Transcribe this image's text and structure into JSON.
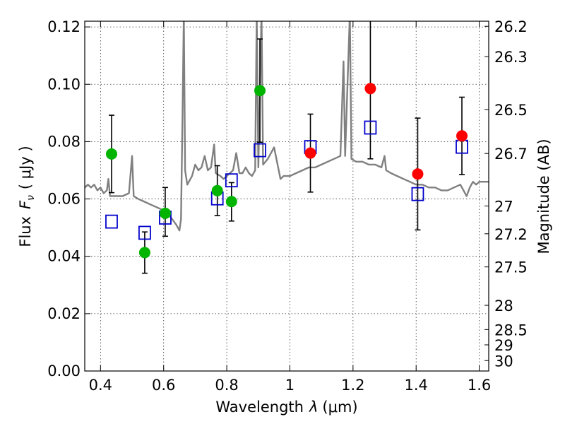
{
  "chart_data": {
    "type": "scatter",
    "xlabel_text": "Wavelength",
    "xlabel_symbol": "λ",
    "xlabel_unit": "(μm)",
    "ylabel_text": "Flux",
    "ylabel_symbol": "F",
    "ylabel_subscript": "ν",
    "ylabel_unit": "( μJy )",
    "ylabel_right": "Magnitude (AB)",
    "xlim": [
      0.35,
      1.63
    ],
    "ylim": [
      0.0,
      0.122
    ],
    "xticks": [
      {
        "value": 0.4,
        "label": "0.4"
      },
      {
        "value": 0.6,
        "label": "0.6"
      },
      {
        "value": 0.8,
        "label": "0.8"
      },
      {
        "value": 1.0,
        "label": "1"
      },
      {
        "value": 1.2,
        "label": "1.2"
      },
      {
        "value": 1.4,
        "label": "1.4"
      },
      {
        "value": 1.6,
        "label": "1.6"
      }
    ],
    "yticks": [
      {
        "value": 0.0,
        "label": "0.00"
      },
      {
        "value": 0.02,
        "label": "0.02"
      },
      {
        "value": 0.04,
        "label": "0.04"
      },
      {
        "value": 0.06,
        "label": "0.06"
      },
      {
        "value": 0.08,
        "label": "0.08"
      },
      {
        "value": 0.1,
        "label": "0.10"
      },
      {
        "value": 0.12,
        "label": "0.12"
      }
    ],
    "right_ticks": [
      {
        "mag": 26.2,
        "label": "26.2"
      },
      {
        "mag": 26.3,
        "label": "26.3"
      },
      {
        "mag": 26.5,
        "label": "26.5"
      },
      {
        "mag": 26.7,
        "label": "26.7"
      },
      {
        "mag": 27.0,
        "label": "27"
      },
      {
        "mag": 27.2,
        "label": "27.2"
      },
      {
        "mag": 27.5,
        "label": "27.5"
      },
      {
        "mag": 28.0,
        "label": "28"
      },
      {
        "mag": 28.5,
        "label": "28.5"
      },
      {
        "mag": 29.0,
        "label": "29"
      },
      {
        "mag": 30.0,
        "label": "30"
      }
    ],
    "colors": {
      "template": "#808080",
      "observed_optical": "#00b400",
      "observed_nir": "#ff0000",
      "model": "#0000cc",
      "errorbar": "#000000"
    },
    "template_spectrum": [
      [
        0.35,
        0.064
      ],
      [
        0.36,
        0.065
      ],
      [
        0.37,
        0.064
      ],
      [
        0.38,
        0.065
      ],
      [
        0.39,
        0.063
      ],
      [
        0.4,
        0.064
      ],
      [
        0.41,
        0.062
      ],
      [
        0.42,
        0.063
      ],
      [
        0.425,
        0.067
      ],
      [
        0.43,
        0.061
      ],
      [
        0.45,
        0.061
      ],
      [
        0.47,
        0.061
      ],
      [
        0.49,
        0.062
      ],
      [
        0.5,
        0.075
      ],
      [
        0.505,
        0.061
      ],
      [
        0.52,
        0.06
      ],
      [
        0.54,
        0.059
      ],
      [
        0.56,
        0.058
      ],
      [
        0.58,
        0.057
      ],
      [
        0.6,
        0.056
      ],
      [
        0.62,
        0.054
      ],
      [
        0.64,
        0.051
      ],
      [
        0.65,
        0.049
      ],
      [
        0.655,
        0.053
      ],
      [
        0.66,
        0.09
      ],
      [
        0.664,
        0.125
      ],
      [
        0.668,
        0.07
      ],
      [
        0.675,
        0.065
      ],
      [
        0.69,
        0.068
      ],
      [
        0.7,
        0.072
      ],
      [
        0.71,
        0.07
      ],
      [
        0.72,
        0.071
      ],
      [
        0.73,
        0.075
      ],
      [
        0.74,
        0.07
      ],
      [
        0.75,
        0.071
      ],
      [
        0.76,
        0.079
      ],
      [
        0.765,
        0.069
      ],
      [
        0.78,
        0.068
      ],
      [
        0.79,
        0.067
      ],
      [
        0.8,
        0.068
      ],
      [
        0.81,
        0.069
      ],
      [
        0.82,
        0.07
      ],
      [
        0.83,
        0.076
      ],
      [
        0.84,
        0.069
      ],
      [
        0.85,
        0.069
      ],
      [
        0.86,
        0.071
      ],
      [
        0.87,
        0.069
      ],
      [
        0.88,
        0.068
      ],
      [
        0.89,
        0.07
      ],
      [
        0.895,
        0.125
      ],
      [
        0.9,
        0.071
      ],
      [
        0.91,
        0.125
      ],
      [
        0.915,
        0.072
      ],
      [
        0.93,
        0.074
      ],
      [
        0.95,
        0.078
      ],
      [
        0.97,
        0.067
      ],
      [
        0.98,
        0.068
      ],
      [
        1.0,
        0.068
      ],
      [
        1.02,
        0.069
      ],
      [
        1.04,
        0.07
      ],
      [
        1.06,
        0.071
      ],
      [
        1.08,
        0.071
      ],
      [
        1.1,
        0.072
      ],
      [
        1.12,
        0.073
      ],
      [
        1.14,
        0.074
      ],
      [
        1.16,
        0.075
      ],
      [
        1.17,
        0.108
      ],
      [
        1.175,
        0.075
      ],
      [
        1.19,
        0.125
      ],
      [
        1.195,
        0.074
      ],
      [
        1.21,
        0.073
      ],
      [
        1.23,
        0.073
      ],
      [
        1.25,
        0.072
      ],
      [
        1.27,
        0.072
      ],
      [
        1.29,
        0.071
      ],
      [
        1.3,
        0.075
      ],
      [
        1.305,
        0.07
      ],
      [
        1.32,
        0.069
      ],
      [
        1.34,
        0.068
      ],
      [
        1.36,
        0.067
      ],
      [
        1.38,
        0.066
      ],
      [
        1.4,
        0.065
      ],
      [
        1.42,
        0.065
      ],
      [
        1.44,
        0.064
      ],
      [
        1.46,
        0.064
      ],
      [
        1.48,
        0.063
      ],
      [
        1.5,
        0.063
      ],
      [
        1.52,
        0.064
      ],
      [
        1.54,
        0.065
      ],
      [
        1.55,
        0.063
      ],
      [
        1.56,
        0.061
      ],
      [
        1.57,
        0.064
      ],
      [
        1.58,
        0.066
      ],
      [
        1.59,
        0.065
      ],
      [
        1.6,
        0.066
      ],
      [
        1.61,
        0.066
      ],
      [
        1.62,
        0.066
      ],
      [
        1.63,
        0.066
      ]
    ],
    "observed": [
      {
        "x": 0.435,
        "y": 0.0757,
        "yerr_low": 0.0135,
        "yerr_high": 0.0135,
        "band": "optical"
      },
      {
        "x": 0.54,
        "y": 0.0413,
        "yerr_low": 0.0072,
        "yerr_high": 0.0072,
        "band": "optical"
      },
      {
        "x": 0.605,
        "y": 0.055,
        "yerr_low": 0.008,
        "yerr_high": 0.009,
        "band": "optical"
      },
      {
        "x": 0.77,
        "y": 0.0629,
        "yerr_low": 0.0087,
        "yerr_high": 0.0087,
        "band": "optical"
      },
      {
        "x": 0.815,
        "y": 0.0591,
        "yerr_low": 0.0068,
        "yerr_high": 0.0066,
        "band": "optical"
      },
      {
        "x": 0.905,
        "y": 0.0978,
        "yerr_low": 0.018,
        "yerr_high": 0.018,
        "band": "optical"
      },
      {
        "x": 1.065,
        "y": 0.076,
        "yerr_low": 0.0136,
        "yerr_high": 0.0136,
        "band": "nir"
      },
      {
        "x": 1.255,
        "y": 0.0985,
        "yerr_low": 0.0245,
        "yerr_high": 0.0245,
        "band": "nir"
      },
      {
        "x": 1.405,
        "y": 0.0687,
        "yerr_low": 0.0195,
        "yerr_high": 0.0195,
        "band": "nir"
      },
      {
        "x": 1.545,
        "y": 0.082,
        "yerr_low": 0.0135,
        "yerr_high": 0.0135,
        "band": "nir"
      }
    ],
    "model": [
      {
        "x": 0.435,
        "y": 0.0521
      },
      {
        "x": 0.54,
        "y": 0.0482
      },
      {
        "x": 0.605,
        "y": 0.0535
      },
      {
        "x": 0.77,
        "y": 0.0602
      },
      {
        "x": 0.815,
        "y": 0.0665
      },
      {
        "x": 0.905,
        "y": 0.077
      },
      {
        "x": 1.065,
        "y": 0.0781
      },
      {
        "x": 1.255,
        "y": 0.0849
      },
      {
        "x": 1.405,
        "y": 0.0617
      },
      {
        "x": 1.545,
        "y": 0.0782
      }
    ]
  }
}
